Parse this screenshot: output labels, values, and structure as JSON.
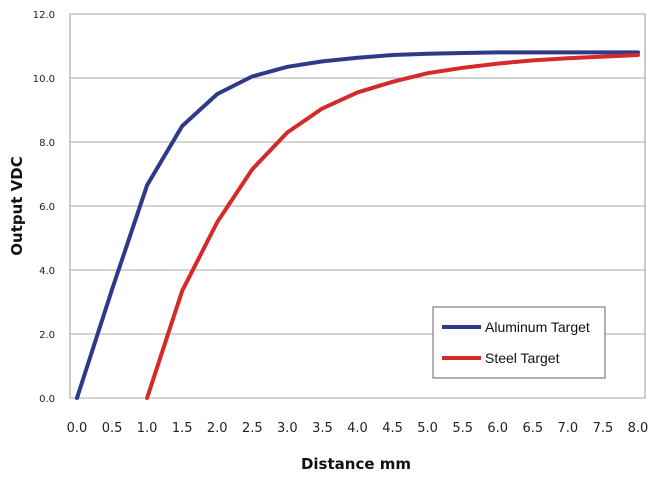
{
  "chart_data": {
    "type": "line",
    "xlabel": "Distance mm",
    "ylabel": "Output VDC",
    "xlim": [
      -0.1,
      8.1
    ],
    "ylim": [
      0,
      12
    ],
    "x_ticks": [
      "0.0",
      "0.5",
      "1.0",
      "1.5",
      "2.0",
      "2.5",
      "3.0",
      "3.5",
      "4.0",
      "4.5",
      "5.0",
      "5.5",
      "6.0",
      "6.5",
      "7.0",
      "7.5",
      "8.0"
    ],
    "y_ticks": [
      "0.0",
      "2.0",
      "4.0",
      "6.0",
      "8.0",
      "10.0",
      "12.0"
    ],
    "grid": "horizontal",
    "legend_position": "bottom-right",
    "series": [
      {
        "name": "Aluminum Target",
        "color": "#2e3a87",
        "x": [
          0.0,
          0.5,
          1.0,
          1.5,
          2.0,
          2.5,
          3.0,
          3.5,
          4.0,
          4.5,
          5.0,
          5.5,
          6.0,
          6.5,
          7.0,
          7.5,
          8.0
        ],
        "y": [
          0.0,
          3.4,
          6.65,
          8.5,
          9.5,
          10.05,
          10.35,
          10.52,
          10.63,
          10.72,
          10.76,
          10.78,
          10.8,
          10.8,
          10.8,
          10.8,
          10.8
        ]
      },
      {
        "name": "Steel Target",
        "color": "#d42a2a",
        "x": [
          1.0,
          1.5,
          2.0,
          2.5,
          3.0,
          3.5,
          4.0,
          4.5,
          5.0,
          5.5,
          6.0,
          6.5,
          7.0,
          7.5,
          8.0
        ],
        "y": [
          0.0,
          3.35,
          5.5,
          7.15,
          8.3,
          9.05,
          9.55,
          9.88,
          10.15,
          10.32,
          10.45,
          10.55,
          10.62,
          10.67,
          10.72
        ]
      }
    ]
  }
}
